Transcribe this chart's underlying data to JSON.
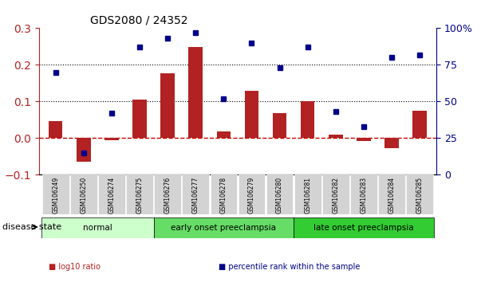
{
  "title": "GDS2080 / 24352",
  "samples": [
    "GSM106249",
    "GSM106250",
    "GSM106274",
    "GSM106275",
    "GSM106276",
    "GSM106277",
    "GSM106278",
    "GSM106279",
    "GSM106280",
    "GSM106281",
    "GSM106282",
    "GSM106283",
    "GSM106284",
    "GSM106285"
  ],
  "log10_ratio": [
    0.047,
    -0.065,
    -0.005,
    0.105,
    0.178,
    0.248,
    0.018,
    0.13,
    0.068,
    0.1,
    0.01,
    -0.008,
    -0.028,
    0.075
  ],
  "percentile_rank": [
    70,
    15,
    42,
    87,
    93,
    97,
    52,
    90,
    73,
    87,
    43,
    33,
    80,
    82
  ],
  "bar_color": "#b22222",
  "dot_color": "#00008b",
  "zero_line_color": "#cc0000",
  "dotted_line_color": "#000000",
  "ylim_left": [
    -0.1,
    0.3
  ],
  "ylim_right": [
    0,
    100
  ],
  "yticks_left": [
    -0.1,
    0.0,
    0.1,
    0.2,
    0.3
  ],
  "yticks_right": [
    0,
    25,
    50,
    75,
    100
  ],
  "ytick_labels_right": [
    "0",
    "25",
    "50",
    "75",
    "100%"
  ],
  "groups": [
    {
      "label": "normal",
      "start": 0,
      "end": 4,
      "color": "#ccffcc"
    },
    {
      "label": "early onset preeclampsia",
      "start": 4,
      "end": 9,
      "color": "#66dd66"
    },
    {
      "label": "late onset preeclampsia",
      "start": 9,
      "end": 14,
      "color": "#33cc33"
    }
  ],
  "legend_items": [
    {
      "label": "log10 ratio",
      "color": "#b22222",
      "marker": "s"
    },
    {
      "label": "percentile rank within the sample",
      "color": "#00008b",
      "marker": "s"
    }
  ],
  "disease_state_label": "disease state",
  "background_color": "#ffffff",
  "tick_label_bg": "#d3d3d3"
}
